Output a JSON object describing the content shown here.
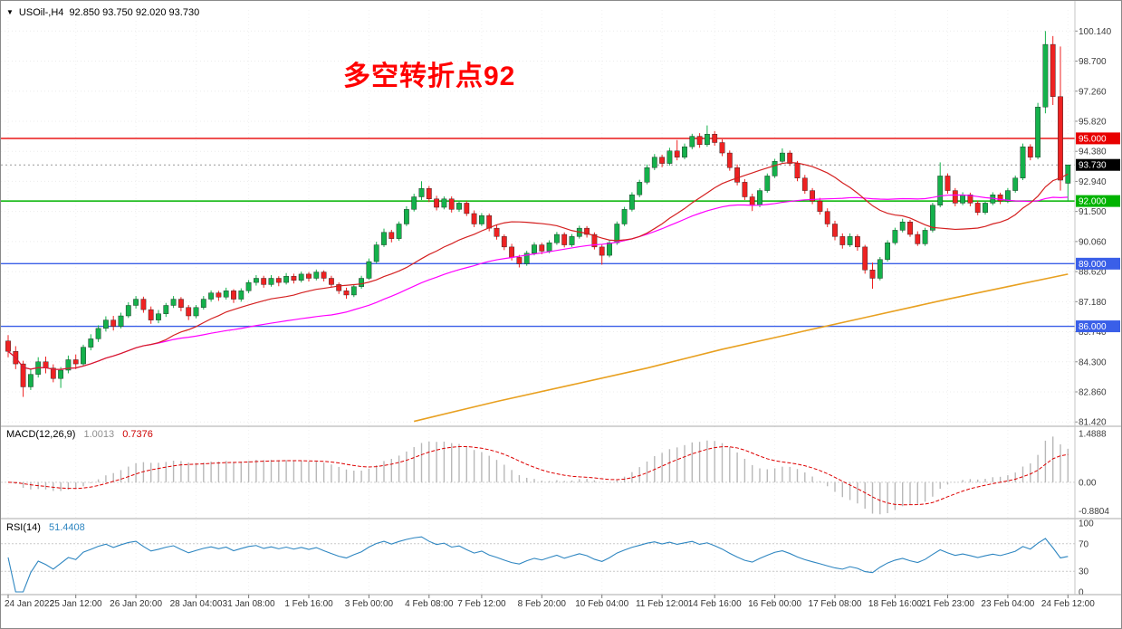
{
  "header": {
    "collapse_icon": "▼",
    "symbol_period": "USOil-,H4",
    "ohlc": "92.850 93.750 92.020 93.730"
  },
  "annotation": {
    "text": "多空转折点92",
    "color": "#ff0000"
  },
  "colors": {
    "bull": "#14b14b",
    "bear": "#ee2222",
    "candle_border": "#1a1a1a",
    "grid": "#ececec",
    "separator": "#a8a8a8",
    "bid_line": "#999999"
  },
  "chart_data": {
    "type": "candlestick",
    "symbol": "USOil-",
    "timeframe": "H4",
    "title": "USOil- H4 with MACD and RSI",
    "price_axis_labels": [
      "100.140",
      "98.700",
      "97.260",
      "95.820",
      "94.380",
      "92.940",
      "91.500",
      "90.060",
      "88.620",
      "87.180",
      "85.740",
      "84.300",
      "82.860",
      "81.420"
    ],
    "hlines": [
      {
        "price": 95.0,
        "label": "95.000",
        "color": "#e80000"
      },
      {
        "price": 92.0,
        "label": "92.000",
        "color": "#00b300"
      },
      {
        "price": 89.0,
        "label": "89.000",
        "color": "#3a5fe8"
      },
      {
        "price": 86.0,
        "label": "86.000",
        "color": "#3a5fe8"
      }
    ],
    "current_price": {
      "price": 93.73,
      "label": "93.730",
      "badge_color": "#000000"
    },
    "time_labels": [
      {
        "text": "24 Jan 2022",
        "bar": 0
      },
      {
        "text": "25 Jan 12:00",
        "bar": 9
      },
      {
        "text": "26 Jan 20:00",
        "bar": 17
      },
      {
        "text": "28 Jan 04:00",
        "bar": 25
      },
      {
        "text": "31 Jan 08:00",
        "bar": 32
      },
      {
        "text": "1 Feb 16:00",
        "bar": 40
      },
      {
        "text": "3 Feb 00:00",
        "bar": 48
      },
      {
        "text": "4 Feb 08:00",
        "bar": 56
      },
      {
        "text": "7 Feb 12:00",
        "bar": 63
      },
      {
        "text": "8 Feb 20:00",
        "bar": 71
      },
      {
        "text": "10 Feb 04:00",
        "bar": 79
      },
      {
        "text": "11 Feb 12:00",
        "bar": 87
      },
      {
        "text": "14 Feb 16:00",
        "bar": 94
      },
      {
        "text": "16 Feb 00:00",
        "bar": 102
      },
      {
        "text": "17 Feb 08:00",
        "bar": 110
      },
      {
        "text": "18 Feb 16:00",
        "bar": 118
      },
      {
        "text": "21 Feb 23:00",
        "bar": 125
      },
      {
        "text": "23 Feb 04:00",
        "bar": 133
      },
      {
        "text": "24 Feb 12:00",
        "bar": 141
      }
    ],
    "candles": [
      [
        85.3,
        85.58,
        84.52,
        84.8
      ],
      [
        84.8,
        85.05,
        83.95,
        84.2
      ],
      [
        84.2,
        84.35,
        82.62,
        83.1
      ],
      [
        83.1,
        83.95,
        82.95,
        83.7
      ],
      [
        83.7,
        84.52,
        83.55,
        84.3
      ],
      [
        84.3,
        84.55,
        83.75,
        84.0
      ],
      [
        84.0,
        84.18,
        83.32,
        83.5
      ],
      [
        83.5,
        84.05,
        83.05,
        83.9
      ],
      [
        83.9,
        84.6,
        83.75,
        84.4
      ],
      [
        84.4,
        84.65,
        83.95,
        84.2
      ],
      [
        84.2,
        85.12,
        84.1,
        85.0
      ],
      [
        85.0,
        85.62,
        84.85,
        85.4
      ],
      [
        85.4,
        86.05,
        85.25,
        85.9
      ],
      [
        85.9,
        86.48,
        85.75,
        86.3
      ],
      [
        86.3,
        86.5,
        85.8,
        86.0
      ],
      [
        86.0,
        86.65,
        85.9,
        86.5
      ],
      [
        86.5,
        87.15,
        86.4,
        87.0
      ],
      [
        87.0,
        87.45,
        86.85,
        87.3
      ],
      [
        87.3,
        87.42,
        86.65,
        86.8
      ],
      [
        86.8,
        86.95,
        86.12,
        86.3
      ],
      [
        86.3,
        86.78,
        86.15,
        86.6
      ],
      [
        86.6,
        87.12,
        86.45,
        87.0
      ],
      [
        87.0,
        87.45,
        86.88,
        87.3
      ],
      [
        87.3,
        87.4,
        86.72,
        86.9
      ],
      [
        86.9,
        87.02,
        86.3,
        86.5
      ],
      [
        86.5,
        87.02,
        86.38,
        86.9
      ],
      [
        86.9,
        87.45,
        86.8,
        87.3
      ],
      [
        87.3,
        87.72,
        87.18,
        87.6
      ],
      [
        87.6,
        87.7,
        87.22,
        87.4
      ],
      [
        87.4,
        87.85,
        87.28,
        87.7
      ],
      [
        87.7,
        87.78,
        87.12,
        87.3
      ],
      [
        87.3,
        87.82,
        87.18,
        87.7
      ],
      [
        87.7,
        88.22,
        87.58,
        88.1
      ],
      [
        88.1,
        88.45,
        87.95,
        88.3
      ],
      [
        88.3,
        88.42,
        87.85,
        88.0
      ],
      [
        88.0,
        88.45,
        87.9,
        88.3
      ],
      [
        88.3,
        88.4,
        87.92,
        88.1
      ],
      [
        88.1,
        88.55,
        88.0,
        88.4
      ],
      [
        88.4,
        88.52,
        88.05,
        88.2
      ],
      [
        88.2,
        88.62,
        88.1,
        88.5
      ],
      [
        88.5,
        88.6,
        88.15,
        88.3
      ],
      [
        88.3,
        88.72,
        88.2,
        88.6
      ],
      [
        88.6,
        88.68,
        88.15,
        88.3
      ],
      [
        88.3,
        88.42,
        87.88,
        88.0
      ],
      [
        88.0,
        88.1,
        87.55,
        87.7
      ],
      [
        87.7,
        87.85,
        87.32,
        87.5
      ],
      [
        87.5,
        88.02,
        87.4,
        87.9
      ],
      [
        87.9,
        88.42,
        87.8,
        88.3
      ],
      [
        88.3,
        89.25,
        88.22,
        89.1
      ],
      [
        89.1,
        90.05,
        89.0,
        89.9
      ],
      [
        89.9,
        90.68,
        89.8,
        90.5
      ],
      [
        90.5,
        90.62,
        90.02,
        90.2
      ],
      [
        90.2,
        91.02,
        90.1,
        90.9
      ],
      [
        90.9,
        91.75,
        90.8,
        91.6
      ],
      [
        91.6,
        92.35,
        91.5,
        92.2
      ],
      [
        92.2,
        92.95,
        92.05,
        92.6
      ],
      [
        92.6,
        92.72,
        91.95,
        92.1
      ],
      [
        92.1,
        92.25,
        91.55,
        91.7
      ],
      [
        91.7,
        92.22,
        91.6,
        92.1
      ],
      [
        92.1,
        92.22,
        91.45,
        91.6
      ],
      [
        91.6,
        92.02,
        91.48,
        91.9
      ],
      [
        91.9,
        92.0,
        91.28,
        91.4
      ],
      [
        91.4,
        91.55,
        90.75,
        90.9
      ],
      [
        90.9,
        91.42,
        90.8,
        91.3
      ],
      [
        91.3,
        91.4,
        90.55,
        90.7
      ],
      [
        90.7,
        90.85,
        90.15,
        90.3
      ],
      [
        90.3,
        90.4,
        89.65,
        89.8
      ],
      [
        89.8,
        89.95,
        89.15,
        89.3
      ],
      [
        89.3,
        89.42,
        88.82,
        89.0
      ],
      [
        89.0,
        89.62,
        88.9,
        89.5
      ],
      [
        89.5,
        90.02,
        89.4,
        89.9
      ],
      [
        89.9,
        90.0,
        89.45,
        89.6
      ],
      [
        89.6,
        90.12,
        89.5,
        90.0
      ],
      [
        90.0,
        90.52,
        89.9,
        90.4
      ],
      [
        90.4,
        90.5,
        89.78,
        89.9
      ],
      [
        89.9,
        90.42,
        89.8,
        90.3
      ],
      [
        90.3,
        90.82,
        90.2,
        90.7
      ],
      [
        90.7,
        90.8,
        90.25,
        90.4
      ],
      [
        90.4,
        90.5,
        89.68,
        89.8
      ],
      [
        89.8,
        89.92,
        88.95,
        89.4
      ],
      [
        89.4,
        90.12,
        89.3,
        90.0
      ],
      [
        90.0,
        91.02,
        89.9,
        90.9
      ],
      [
        90.9,
        91.72,
        90.8,
        91.6
      ],
      [
        91.6,
        92.42,
        91.5,
        92.3
      ],
      [
        92.3,
        93.02,
        92.18,
        92.9
      ],
      [
        92.9,
        93.75,
        92.8,
        93.6
      ],
      [
        93.6,
        94.25,
        93.48,
        94.1
      ],
      [
        94.1,
        94.22,
        93.62,
        93.8
      ],
      [
        93.8,
        94.55,
        93.7,
        94.4
      ],
      [
        94.4,
        94.92,
        93.95,
        94.1
      ],
      [
        94.1,
        94.75,
        94.0,
        94.6
      ],
      [
        94.6,
        95.22,
        94.48,
        95.1
      ],
      [
        95.1,
        95.25,
        94.55,
        94.7
      ],
      [
        94.7,
        95.62,
        94.6,
        95.2
      ],
      [
        95.2,
        95.35,
        94.65,
        94.8
      ],
      [
        94.8,
        94.95,
        94.15,
        94.3
      ],
      [
        94.3,
        94.42,
        93.45,
        93.6
      ],
      [
        93.6,
        93.75,
        92.75,
        92.9
      ],
      [
        92.9,
        93.05,
        92.05,
        92.2
      ],
      [
        92.2,
        92.35,
        91.52,
        91.8
      ],
      [
        91.8,
        92.62,
        91.7,
        92.5
      ],
      [
        92.5,
        93.32,
        92.4,
        93.2
      ],
      [
        93.2,
        94.02,
        93.1,
        93.9
      ],
      [
        93.9,
        94.52,
        93.8,
        94.3
      ],
      [
        94.3,
        94.42,
        93.68,
        93.8
      ],
      [
        93.8,
        93.92,
        92.95,
        93.1
      ],
      [
        93.1,
        93.25,
        92.35,
        92.5
      ],
      [
        92.5,
        92.62,
        91.85,
        92.0
      ],
      [
        92.0,
        92.15,
        91.35,
        91.5
      ],
      [
        91.5,
        91.65,
        90.75,
        90.9
      ],
      [
        90.9,
        91.05,
        90.12,
        90.3
      ],
      [
        90.3,
        90.45,
        89.72,
        89.9
      ],
      [
        89.9,
        90.45,
        89.8,
        90.3
      ],
      [
        90.3,
        90.4,
        89.62,
        89.8
      ],
      [
        89.8,
        89.9,
        88.52,
        88.7
      ],
      [
        88.7,
        89.05,
        87.8,
        88.3
      ],
      [
        88.3,
        89.32,
        88.2,
        89.2
      ],
      [
        89.2,
        90.12,
        89.1,
        90.0
      ],
      [
        90.0,
        90.72,
        89.9,
        90.6
      ],
      [
        90.6,
        91.15,
        90.5,
        91.0
      ],
      [
        91.0,
        91.1,
        90.28,
        90.4
      ],
      [
        90.4,
        90.55,
        89.85,
        89.95
      ],
      [
        89.95,
        90.72,
        89.85,
        90.6
      ],
      [
        90.6,
        91.92,
        90.5,
        91.8
      ],
      [
        91.8,
        93.85,
        91.7,
        93.2
      ],
      [
        93.2,
        93.32,
        92.35,
        92.5
      ],
      [
        92.5,
        92.62,
        91.75,
        91.9
      ],
      [
        91.9,
        92.42,
        91.8,
        92.3
      ],
      [
        92.3,
        92.4,
        91.75,
        91.9
      ],
      [
        91.9,
        92.02,
        91.32,
        91.45
      ],
      [
        91.45,
        92.02,
        91.35,
        91.9
      ],
      [
        91.9,
        92.42,
        91.8,
        92.3
      ],
      [
        92.3,
        92.4,
        91.85,
        92.0
      ],
      [
        92.0,
        92.62,
        91.9,
        92.5
      ],
      [
        92.5,
        93.22,
        92.4,
        93.1
      ],
      [
        93.1,
        94.75,
        93.0,
        94.6
      ],
      [
        94.6,
        94.72,
        93.95,
        94.1
      ],
      [
        94.1,
        96.7,
        94.0,
        96.5
      ],
      [
        96.5,
        100.14,
        96.2,
        99.5
      ],
      [
        99.5,
        99.9,
        96.6,
        97.0
      ],
      [
        97.0,
        99.4,
        92.5,
        93.0
      ],
      [
        92.85,
        93.75,
        92.02,
        93.73
      ]
    ],
    "moving_averages": {
      "red": {
        "period": 20,
        "color": "#d42020"
      },
      "magenta": {
        "period": 44,
        "color": "#ff00ff"
      },
      "orange": {
        "color": "#e8a020",
        "points": [
          [
            54,
            81.45
          ],
          [
            65,
            82.4
          ],
          [
            75,
            83.2
          ],
          [
            85,
            84.0
          ],
          [
            95,
            84.9
          ],
          [
            105,
            85.7
          ],
          [
            115,
            86.5
          ],
          [
            125,
            87.3
          ],
          [
            133,
            87.9
          ],
          [
            141,
            88.5
          ]
        ]
      }
    },
    "macd": {
      "label": "MACD(12,26,9)",
      "value": "1.0013",
      "signal_value": "0.7376",
      "fast": 12,
      "slow": 26,
      "signal": 9,
      "axis_labels": [
        {
          "text": "1.4888",
          "value": 1.4888
        },
        {
          "text": "0.00",
          "value": 0
        },
        {
          "text": "-0.8804",
          "value": -0.8804
        }
      ],
      "hist_color": "#b8b8b8",
      "signal_color": "#dd0000"
    },
    "rsi": {
      "label": "RSI(14)",
      "value": "51.4408",
      "period": 14,
      "color": "#2e86c1",
      "axis_labels": [
        {
          "text": "100",
          "value": 100
        },
        {
          "text": "70",
          "value": 70
        },
        {
          "text": "30",
          "value": 30
        },
        {
          "text": "0",
          "value": 0
        }
      ],
      "levels": [
        70,
        30
      ]
    }
  }
}
